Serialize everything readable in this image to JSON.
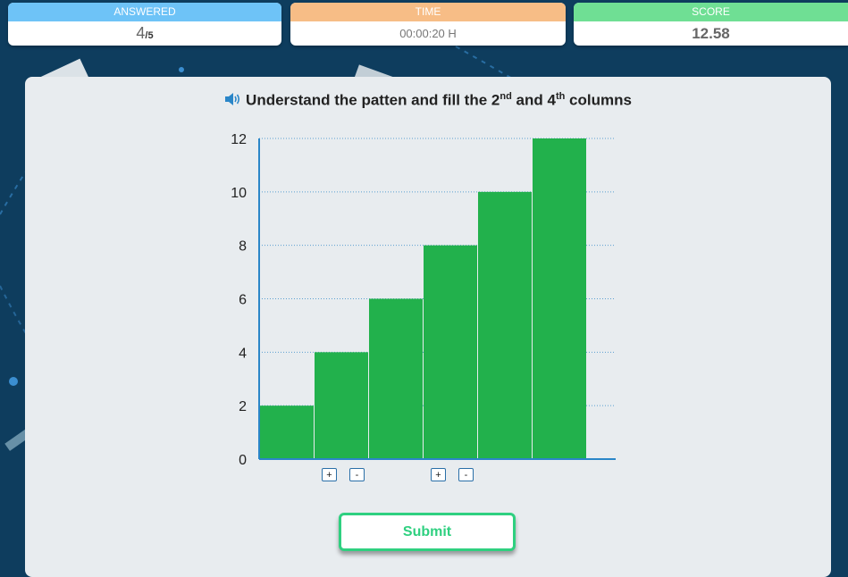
{
  "stats": {
    "answered_label": "ANSWERED",
    "answered_count": "4",
    "answered_total": "/5",
    "time_label": "TIME",
    "time_value": "00:00:20 H",
    "score_label": "SCORE",
    "score_value": "12.58"
  },
  "question": {
    "text_a": "Understand the patten and fill the 2",
    "sup_a": "nd",
    "text_b": " and 4",
    "sup_b": "th",
    "text_c": " columns"
  },
  "controls": {
    "plus": "+",
    "minus": "-"
  },
  "submit_label": "Submit",
  "colors": {
    "bar": "#22b14c",
    "axis": "#2a86c8",
    "answered_header": "#6ec3f7",
    "time_header": "#f7bd86",
    "score_header": "#6fdf94",
    "submit": "#2fd080"
  },
  "chart_data": {
    "type": "bar",
    "categories": [
      "",
      "",
      "",
      "",
      "",
      ""
    ],
    "values": [
      2,
      4,
      6,
      8,
      10,
      12
    ],
    "ylim": [
      0,
      12
    ],
    "yticks": [
      0,
      2,
      4,
      6,
      8,
      10,
      12
    ],
    "grid": true,
    "editable_columns": [
      2,
      4
    ]
  }
}
